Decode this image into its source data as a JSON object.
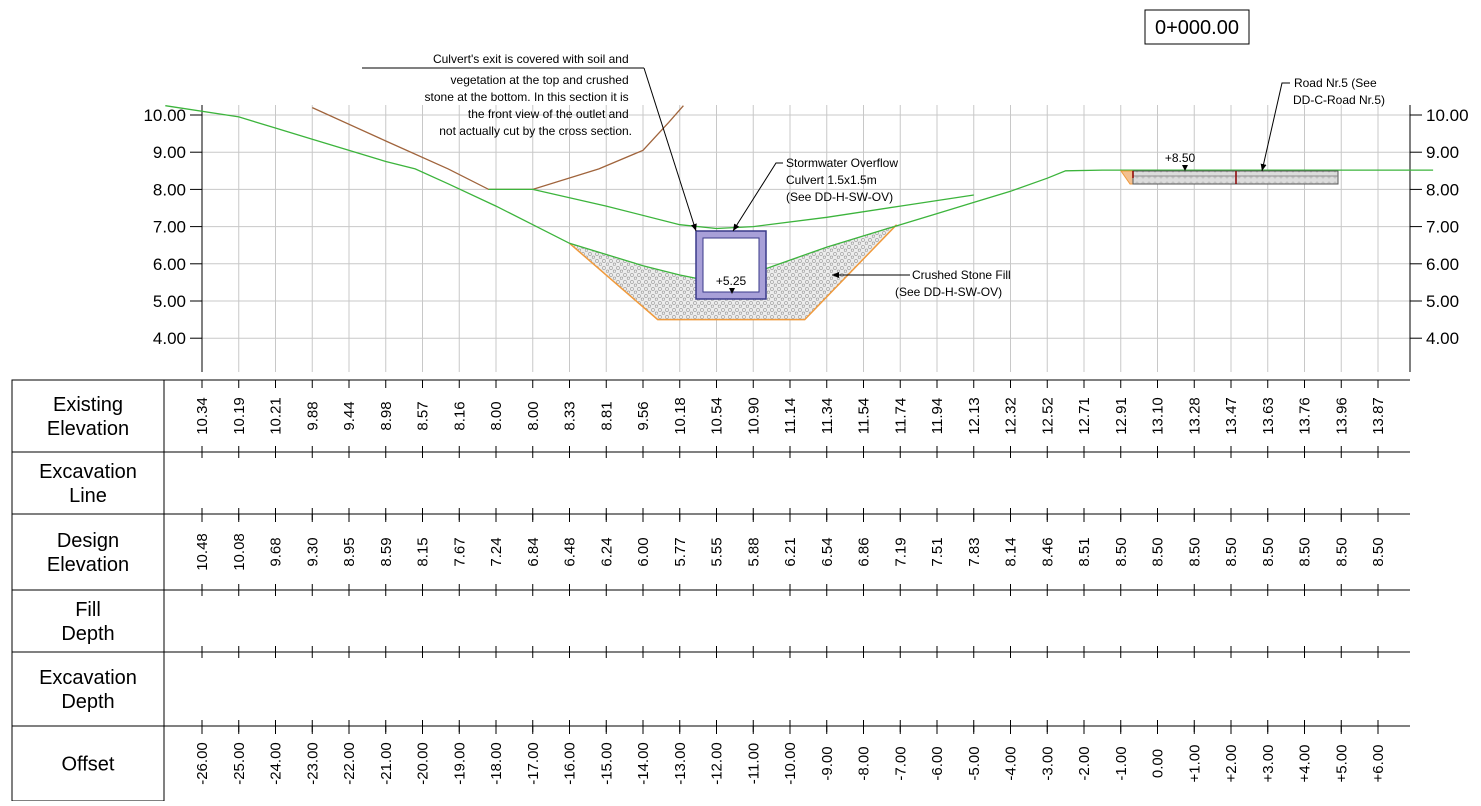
{
  "station": "0+000.00",
  "colors": {
    "existing_ground": "#3cb43c",
    "excavation": "#a0643c",
    "fill_outline": "#f09a3c",
    "culvert_outer": "#5050a0",
    "culvert_fill": "#a8a0d8",
    "grid": "#c8c8c8",
    "road_fill": "#d8d8d8"
  },
  "elevation_axis": {
    "labels": [
      "10.00",
      "9.00",
      "8.00",
      "7.00",
      "6.00",
      "5.00",
      "4.00"
    ]
  },
  "annotations": {
    "culvert_exit_note": [
      "Culvert's exit is covered with soil and",
      "vegetation at the top and crushed",
      "stone at the bottom. In this section it is",
      "the front view of the outlet and",
      "not actually cut by the cross section."
    ],
    "stormwater_culvert": [
      "Stormwater Overflow",
      "Culvert 1.5x1.5m",
      "(See DD-H-SW-OV)"
    ],
    "crushed_stone": [
      "Crushed Stone Fill",
      "(See DD-H-SW-OV)"
    ],
    "road": [
      "Road Nr.5 (See",
      "DD-C-Road Nr.5)"
    ],
    "culvert_level": "+5.25",
    "road_level": "+8.50"
  },
  "table": {
    "rows": [
      {
        "label": [
          "Existing",
          "Elevation"
        ],
        "values": [
          "10.34",
          "10.19",
          "10.21",
          "9.88",
          "9.44",
          "8.98",
          "8.57",
          "8.16",
          "8.00",
          "8.00",
          "8.33",
          "8.81",
          "9.56",
          "10.18",
          "10.54",
          "10.90",
          "11.14",
          "11.34",
          "11.54",
          "11.74",
          "11.94",
          "12.13",
          "12.32",
          "12.52",
          "12.71",
          "12.91",
          "13.10",
          "13.28",
          "13.47",
          "13.63",
          "13.76",
          "13.96",
          "13.87"
        ]
      },
      {
        "label": [
          "Excavation",
          "Line"
        ],
        "values": []
      },
      {
        "label": [
          "Design",
          "Elevation"
        ],
        "values": [
          "10.48",
          "10.08",
          "9.68",
          "9.30",
          "8.95",
          "8.59",
          "8.15",
          "7.67",
          "7.24",
          "6.84",
          "6.48",
          "6.24",
          "6.00",
          "5.77",
          "5.55",
          "5.88",
          "6.21",
          "6.54",
          "6.86",
          "7.19",
          "7.51",
          "7.83",
          "8.14",
          "8.46",
          "8.51",
          "8.50",
          "8.50",
          "8.50",
          "8.50",
          "8.50",
          "8.50",
          "8.50",
          "8.50"
        ]
      },
      {
        "label": [
          "Fill",
          "Depth"
        ],
        "values": []
      },
      {
        "label": [
          "Excavation",
          "Depth"
        ],
        "values": []
      },
      {
        "label": [
          "Offset"
        ],
        "values": [
          "-26.00",
          "-25.00",
          "-24.00",
          "-23.00",
          "-22.00",
          "-21.00",
          "-20.00",
          "-19.00",
          "-18.00",
          "-17.00",
          "-16.00",
          "-15.00",
          "-14.00",
          "-13.00",
          "-12.00",
          "-11.00",
          "-10.00",
          "-9.00",
          "-8.00",
          "-7.00",
          "-6.00",
          "-5.00",
          "-4.00",
          "-3.00",
          "-2.00",
          "-1.00",
          "0.00",
          "+1.00",
          "+2.00",
          "+3.00",
          "+4.00",
          "+5.00",
          "+6.00"
        ]
      }
    ]
  },
  "profiles": {
    "existing_ground": [
      [
        -27,
        10.25
      ],
      [
        -25,
        9.95
      ],
      [
        -23,
        9.35
      ],
      [
        -21,
        8.75
      ],
      [
        -20.2,
        8.55
      ],
      [
        -19.3,
        8.15
      ],
      [
        -18,
        7.55
      ],
      [
        -17,
        7.05
      ],
      [
        -16,
        6.55
      ],
      [
        -15,
        6.25
      ],
      [
        -14,
        5.95
      ],
      [
        -13,
        5.7
      ],
      [
        -12,
        5.5
      ],
      [
        -11,
        5.75
      ],
      [
        -10,
        6.1
      ],
      [
        -9,
        6.45
      ],
      [
        -8,
        6.75
      ],
      [
        -7,
        7.05
      ],
      [
        -6,
        7.35
      ],
      [
        -5,
        7.65
      ],
      [
        -4,
        7.95
      ],
      [
        -3,
        8.3
      ],
      [
        -2.5,
        8.5
      ],
      [
        -1.5,
        8.52
      ],
      [
        2,
        8.52
      ],
      [
        7.5,
        8.52
      ]
    ],
    "design_grade": [
      [
        -18.2,
        8.0
      ],
      [
        -17,
        8.0
      ],
      [
        -15,
        7.55
      ],
      [
        -13,
        7.05
      ],
      [
        -12,
        6.95
      ],
      [
        -11,
        7.0
      ],
      [
        -9,
        7.25
      ],
      [
        -7,
        7.55
      ],
      [
        -5,
        7.85
      ]
    ],
    "excavation": [
      [
        -23,
        10.2
      ],
      [
        -21,
        9.3
      ],
      [
        -19.3,
        8.55
      ],
      [
        -18.2,
        8.0
      ],
      [
        -17,
        8.0
      ],
      [
        -15.2,
        8.55
      ],
      [
        -14,
        9.05
      ],
      [
        -13.3,
        9.8
      ],
      [
        -12.9,
        10.25
      ]
    ],
    "fill_zone": [
      [
        -16,
        6.55
      ],
      [
        -15,
        6.25
      ],
      [
        -14,
        5.95
      ],
      [
        -13,
        5.7
      ],
      [
        -12,
        5.5
      ],
      [
        -11,
        5.75
      ],
      [
        -10,
        6.1
      ],
      [
        -9,
        6.45
      ],
      [
        -8,
        6.75
      ],
      [
        -7.1,
        7.05
      ],
      [
        -9.6,
        4.5
      ],
      [
        -13.6,
        4.5
      ]
    ]
  }
}
